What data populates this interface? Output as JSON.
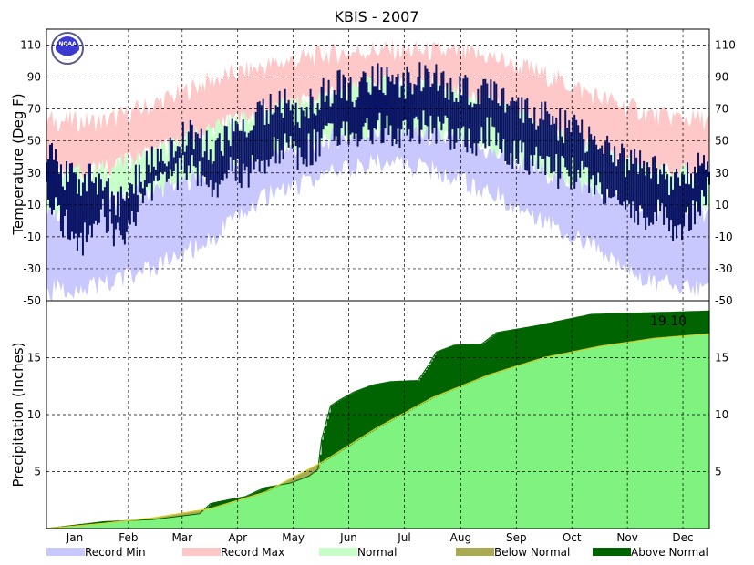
{
  "chart_data": {
    "title": "KBIS - 2007",
    "type": "area",
    "months": [
      "Jan",
      "Feb",
      "Mar",
      "Apr",
      "May",
      "Jun",
      "Jul",
      "Aug",
      "Sep",
      "Oct",
      "Nov",
      "Dec"
    ],
    "temperature_panel": {
      "ylabel": "Temperature (Deg F)",
      "ylim": [
        -50,
        120
      ],
      "yticks": [
        110,
        90,
        70,
        50,
        30,
        10,
        -10,
        -30,
        -50
      ],
      "series_anchors_day_of_year": [
        1,
        32,
        60,
        91,
        121,
        152,
        182,
        213,
        244,
        274,
        305,
        335,
        365
      ],
      "record_max": [
        63,
        62,
        73,
        88,
        97,
        104,
        107,
        106,
        103,
        92,
        77,
        66,
        63
      ],
      "normal_max": [
        28,
        32,
        42,
        57,
        68,
        77,
        85,
        84,
        73,
        60,
        42,
        31,
        28
      ],
      "normal_min": [
        5,
        10,
        19,
        30,
        41,
        50,
        56,
        53,
        43,
        31,
        18,
        8,
        5
      ],
      "record_min": [
        -44,
        -40,
        -30,
        -12,
        15,
        28,
        37,
        32,
        18,
        2,
        -20,
        -38,
        -44
      ],
      "observed_anchors": [
        [
          1,
          45,
          20
        ],
        [
          10,
          30,
          0
        ],
        [
          20,
          25,
          -15
        ],
        [
          32,
          25,
          5
        ],
        [
          40,
          10,
          -10
        ],
        [
          50,
          25,
          5
        ],
        [
          60,
          40,
          20
        ],
        [
          70,
          45,
          25
        ],
        [
          80,
          55,
          35
        ],
        [
          91,
          45,
          20
        ],
        [
          100,
          50,
          30
        ],
        [
          110,
          60,
          30
        ],
        [
          121,
          70,
          40
        ],
        [
          130,
          75,
          45
        ],
        [
          140,
          65,
          40
        ],
        [
          152,
          80,
          50
        ],
        [
          162,
          85,
          55
        ],
        [
          172,
          80,
          55
        ],
        [
          182,
          90,
          60
        ],
        [
          192,
          85,
          55
        ],
        [
          202,
          88,
          58
        ],
        [
          213,
          90,
          60
        ],
        [
          223,
          85,
          55
        ],
        [
          233,
          80,
          50
        ],
        [
          244,
          85,
          55
        ],
        [
          254,
          75,
          45
        ],
        [
          264,
          70,
          40
        ],
        [
          274,
          65,
          35
        ],
        [
          284,
          60,
          30
        ],
        [
          294,
          55,
          30
        ],
        [
          305,
          45,
          20
        ],
        [
          315,
          40,
          15
        ],
        [
          325,
          35,
          5
        ],
        [
          335,
          35,
          5
        ],
        [
          345,
          25,
          -5
        ],
        [
          355,
          30,
          0
        ],
        [
          365,
          40,
          20
        ]
      ]
    },
    "precip_panel": {
      "ylabel": "Precipitation (Inches)",
      "ylim": [
        0,
        20
      ],
      "yticks": [
        5,
        10,
        15
      ],
      "total_label": "19.10",
      "normal_anchors": [
        [
          1,
          0.0
        ],
        [
          32,
          0.45
        ],
        [
          60,
          0.95
        ],
        [
          91,
          1.75
        ],
        [
          121,
          3.2
        ],
        [
          152,
          5.8
        ],
        [
          182,
          8.8
        ],
        [
          213,
          11.5
        ],
        [
          244,
          13.5
        ],
        [
          274,
          15.0
        ],
        [
          305,
          16.0
        ],
        [
          335,
          16.7
        ],
        [
          365,
          17.1
        ]
      ],
      "observed_anchors": [
        [
          1,
          0.0
        ],
        [
          32,
          0.6
        ],
        [
          60,
          0.8
        ],
        [
          85,
          1.3
        ],
        [
          91,
          2.2
        ],
        [
          100,
          2.5
        ],
        [
          110,
          2.8
        ],
        [
          121,
          3.6
        ],
        [
          135,
          4.0
        ],
        [
          145,
          4.6
        ],
        [
          150,
          5.2
        ],
        [
          152,
          7.8
        ],
        [
          157,
          10.8
        ],
        [
          162,
          11.3
        ],
        [
          170,
          12.0
        ],
        [
          180,
          12.6
        ],
        [
          190,
          12.9
        ],
        [
          205,
          13.0
        ],
        [
          211,
          14.4
        ],
        [
          215,
          15.5
        ],
        [
          225,
          16.1
        ],
        [
          240,
          16.2
        ],
        [
          248,
          17.2
        ],
        [
          270,
          17.8
        ],
        [
          300,
          18.8
        ],
        [
          320,
          18.9
        ],
        [
          345,
          19.0
        ],
        [
          365,
          19.1
        ]
      ]
    },
    "legend": [
      {
        "label": "Record Min",
        "color": "#c8c8ff"
      },
      {
        "label": "Record Max",
        "color": "#ffc8c8"
      },
      {
        "label": "Normal",
        "color": "#c8ffc8"
      },
      {
        "label": "Below Normal",
        "color": "#aaaa55"
      },
      {
        "label": "Above Normal",
        "color": "#006400"
      }
    ],
    "colors": {
      "record_min": "#c8c8ff",
      "record_max": "#ffc8c8",
      "normal": "#c8ffc8",
      "observed": "#0a1464",
      "precip_normal": "#7ff27f",
      "precip_above": "#006400",
      "precip_below": "#aaaa55",
      "grid": "#000000"
    },
    "logo": {
      "name": "noaa-logo",
      "text": "NOAA"
    }
  }
}
